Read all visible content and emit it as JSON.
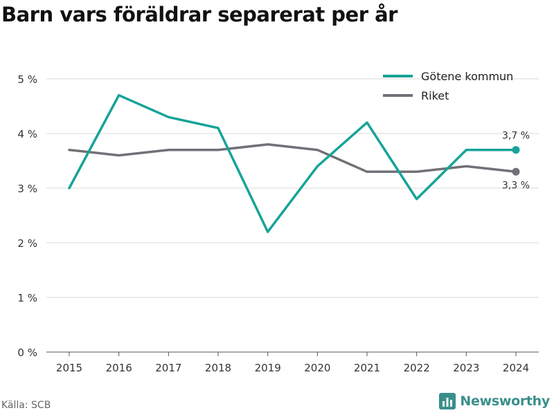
{
  "title": "Barn vars föräldrar separerat per år",
  "source": "Källa: SCB",
  "brand": {
    "name": "Newsworthy",
    "icon": "newsworthy-logo-icon",
    "color": "#3a8f8a"
  },
  "chart_data": {
    "type": "line",
    "title": "Barn vars föräldrar separerat per år",
    "x": [
      "2015",
      "2016",
      "2017",
      "2018",
      "2019",
      "2020",
      "2021",
      "2022",
      "2023",
      "2024"
    ],
    "ylim": [
      0,
      5
    ],
    "y_ticks": [
      0,
      1,
      2,
      3,
      4,
      5
    ],
    "y_tick_labels": [
      "0 %",
      "1 %",
      "2 %",
      "3 %",
      "4 %",
      "5 %"
    ],
    "grid": true,
    "legend_position": "top-right",
    "series": [
      {
        "name": "Götene kommun",
        "color": "#17a398",
        "values": [
          3.0,
          4.7,
          4.3,
          4.1,
          2.2,
          3.4,
          4.2,
          2.8,
          3.7,
          3.7
        ],
        "end_label": "3,7 %"
      },
      {
        "name": "Riket",
        "color": "#727077",
        "values": [
          3.7,
          3.6,
          3.7,
          3.7,
          3.8,
          3.7,
          3.3,
          3.3,
          3.4,
          3.3
        ],
        "end_label": "3,3 %"
      }
    ]
  }
}
